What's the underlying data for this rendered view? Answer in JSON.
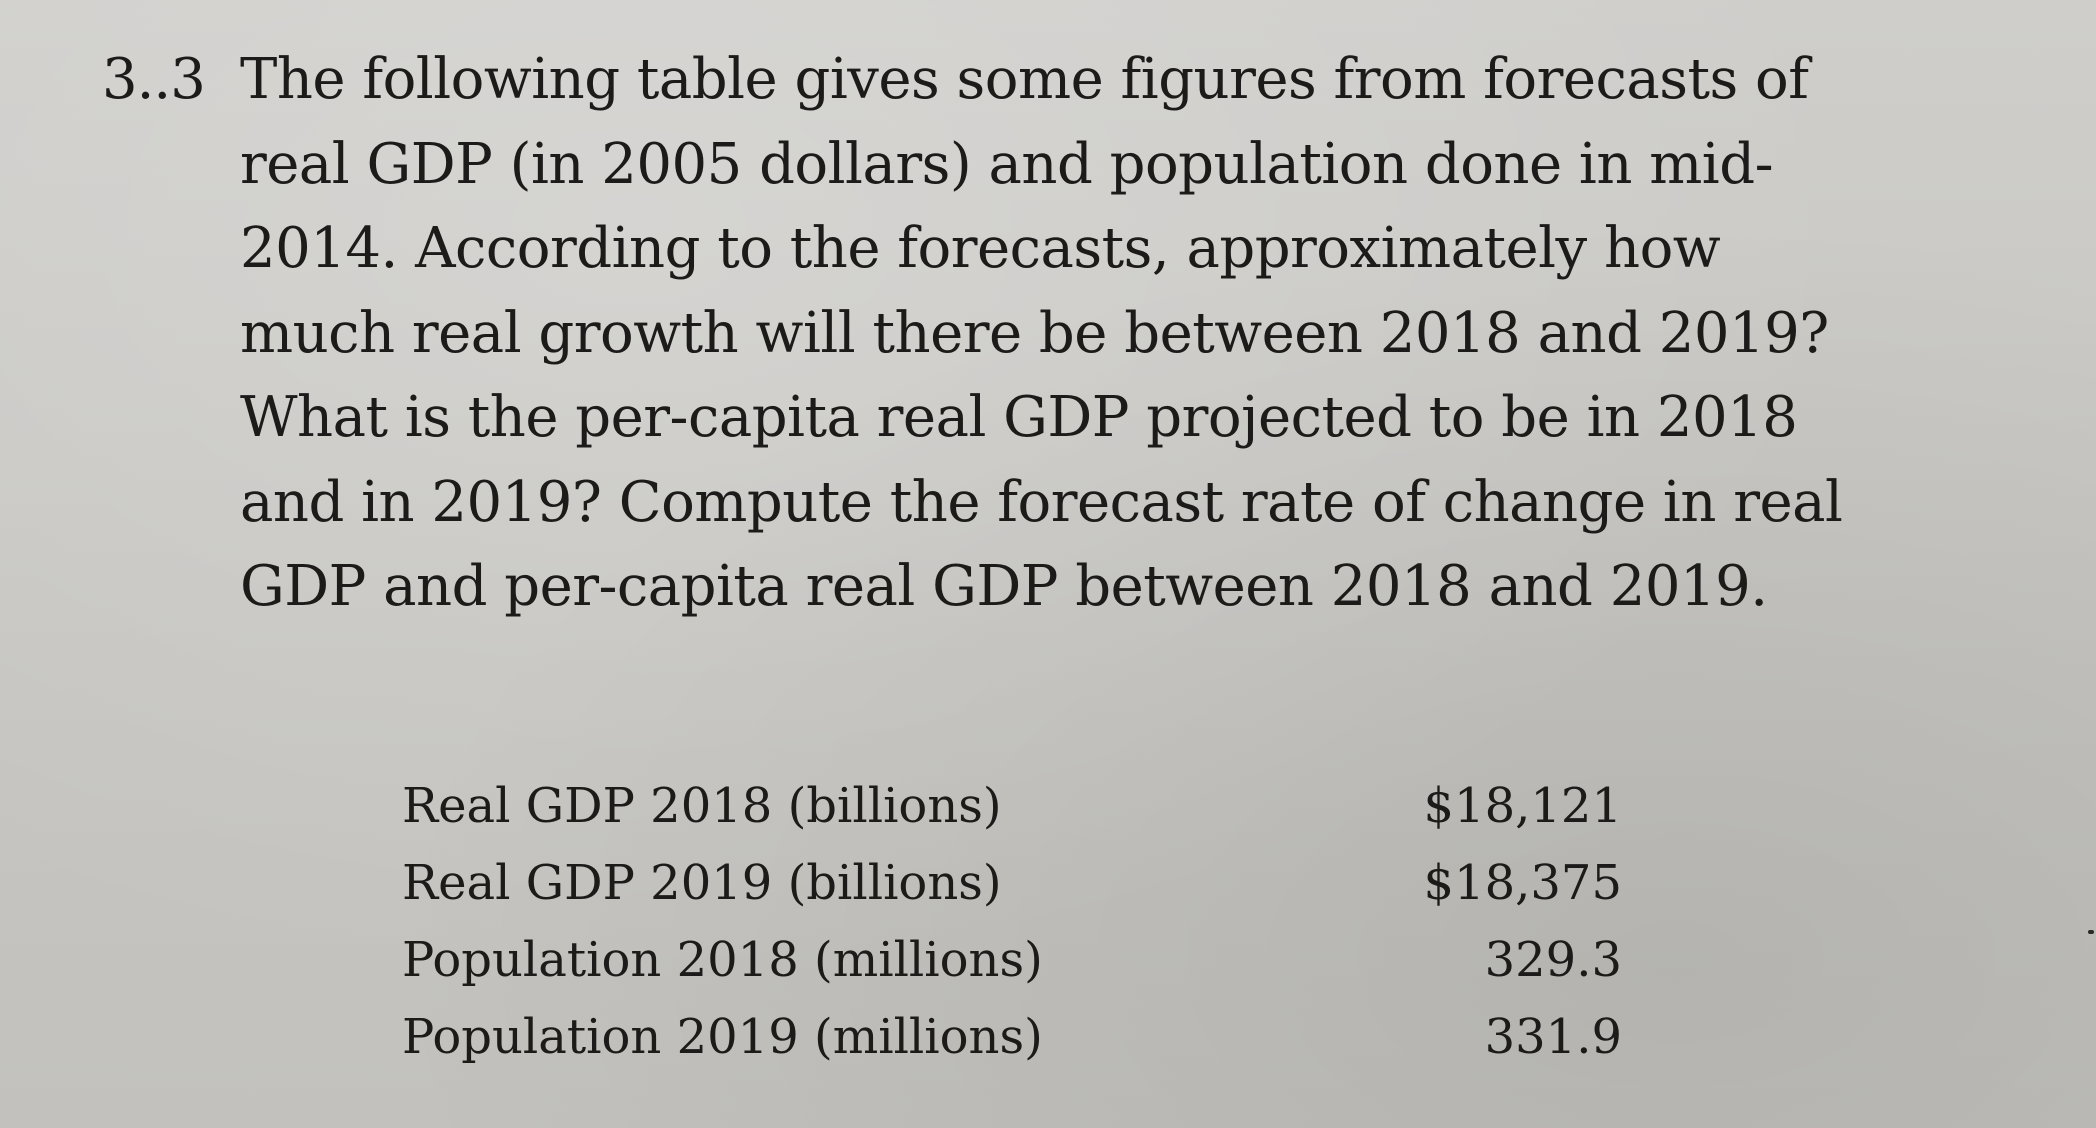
{
  "problem": {
    "number": "3..3",
    "lines": [
      "The following table gives some figures from forecasts of",
      "real GDP (in 2005 dollars) and population done in mid-",
      "2014. According to the forecasts, approximately how",
      "much real growth will there be between 2018 and 2019?",
      "What is the per-capita real GDP projected to be in 2018",
      "and in 2019? Compute the forecast rate of change in real",
      "GDP and per-capita real GDP between 2018 and 2019."
    ]
  },
  "table": {
    "rows": [
      {
        "label": "Real GDP 2018 (billions)",
        "value": "$18,121"
      },
      {
        "label": "Real GDP 2019 (billions)",
        "value": "$18,375"
      },
      {
        "label": "Population 2018 (millions)",
        "value": "329.3"
      },
      {
        "label": "Population 2019 (millions)",
        "value": "331.9"
      }
    ]
  }
}
